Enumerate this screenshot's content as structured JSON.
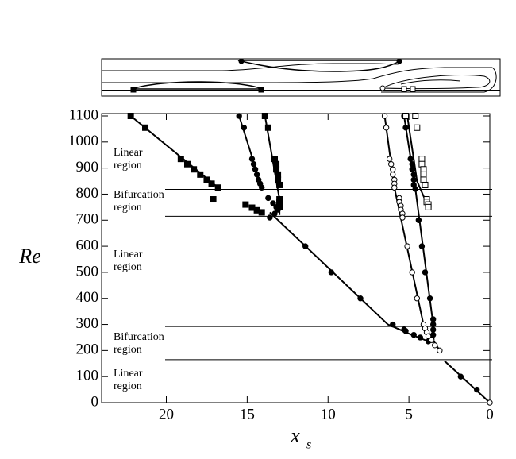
{
  "chart_data": {
    "type": "scatter",
    "xlabel": {
      "text": "x",
      "subscript": "s"
    },
    "ylabel": "Re",
    "xlim": [
      24,
      0
    ],
    "ylim": [
      0,
      1100
    ],
    "xticks": [
      20,
      15,
      10,
      5,
      0
    ],
    "yticks": [
      0,
      100,
      200,
      300,
      400,
      500,
      600,
      700,
      800,
      900,
      1000,
      1100
    ],
    "hlines": [
      818,
      715,
      292,
      165
    ],
    "annotations": [
      [
        "Linear",
        "region"
      ],
      [
        "Bifurcation",
        "region"
      ],
      [
        "Linear",
        "region"
      ],
      [
        "Bifurcation",
        "region"
      ],
      [
        "Linear",
        "region"
      ]
    ],
    "series": [
      {
        "marker": "filled-square",
        "color": "#000",
        "x": [
          22.2,
          21.3,
          19.1,
          18.7,
          18.3,
          17.9,
          17.5,
          17.2,
          16.8,
          17.1,
          15.1,
          14.7,
          14.4,
          14.1,
          13.9,
          13.7,
          13.3,
          13.2,
          13.2,
          13.1,
          13.1,
          13.0,
          13.0,
          13.0,
          13.0,
          13.0
        ],
        "y": [
          1100,
          1055,
          935,
          915,
          895,
          875,
          855,
          840,
          825,
          780,
          760,
          748,
          738,
          730,
          1100,
          1055,
          935,
          915,
          895,
          875,
          855,
          835,
          780,
          770,
          760,
          750
        ]
      },
      {
        "marker": "filled-circle",
        "color": "#000",
        "x": [
          15.5,
          15.2,
          14.7,
          14.6,
          14.5,
          14.4,
          14.3,
          14.2,
          14.1,
          13.7,
          13.4,
          13.2,
          13.1,
          13.3,
          13.6,
          11.4,
          9.8,
          8.0,
          6.0,
          5.3,
          5.2,
          4.7,
          4.3,
          3.8,
          5.3,
          5.2,
          4.9,
          4.8,
          4.8,
          4.7,
          4.7,
          4.7,
          4.6,
          4.4,
          4.2,
          4.0,
          3.7,
          3.5,
          3.5,
          3.5,
          3.5,
          3.6,
          1.8,
          0.8
        ],
        "y": [
          1100,
          1055,
          935,
          915,
          895,
          875,
          855,
          840,
          825,
          785,
          765,
          750,
          740,
          725,
          710,
          600,
          500,
          400,
          300,
          280,
          275,
          260,
          250,
          235,
          1100,
          1055,
          935,
          915,
          895,
          875,
          855,
          835,
          820,
          700,
          600,
          500,
          400,
          320,
          300,
          280,
          260,
          245,
          100,
          50
        ]
      },
      {
        "marker": "open-circle",
        "color": "#000",
        "x": [
          6.5,
          6.4,
          6.2,
          6.1,
          6.0,
          6.0,
          5.9,
          5.9,
          5.9,
          5.6,
          5.6,
          5.5,
          5.5,
          5.4,
          5.4,
          5.1,
          4.8,
          4.5,
          4.1,
          4.0,
          3.9,
          3.8,
          3.6,
          3.4,
          3.1,
          0
        ],
        "y": [
          1100,
          1055,
          935,
          915,
          895,
          875,
          855,
          840,
          825,
          785,
          770,
          755,
          740,
          725,
          710,
          600,
          500,
          400,
          300,
          285,
          270,
          255,
          240,
          220,
          200,
          0
        ]
      },
      {
        "marker": "open-square",
        "color": "#000",
        "x": [
          5.2,
          4.6,
          4.5,
          4.2,
          4.2,
          4.1,
          4.1,
          4.1,
          4.0,
          3.9,
          3.9,
          3.8,
          3.8
        ],
        "y": [
          1100,
          1100,
          1055,
          935,
          915,
          895,
          875,
          855,
          835,
          780,
          770,
          760,
          750
        ]
      }
    ],
    "lines": [
      {
        "x": [
          22.2,
          16.8
        ],
        "y": [
          1100,
          825
        ]
      },
      {
        "x": [
          15.5,
          14.1
        ],
        "y": [
          1100,
          825
        ]
      },
      {
        "x": [
          13.9,
          13.0,
          13.0
        ],
        "y": [
          1100,
          780,
          720
        ]
      },
      {
        "x": [
          13.6,
          6.3,
          5.0,
          3.8
        ],
        "y": [
          730,
          300,
          265,
          235
        ]
      },
      {
        "x": [
          6.5,
          5.9,
          4.1,
          3.1
        ],
        "y": [
          1100,
          825,
          300,
          200
        ]
      },
      {
        "x": [
          5.3,
          4.6,
          3.5,
          3.6
        ],
        "y": [
          1100,
          820,
          300,
          245
        ]
      },
      {
        "x": [
          5.1,
          4.5,
          3.8
        ],
        "y": [
          1100,
          850,
          750
        ]
      },
      {
        "x": [
          2.8,
          0
        ],
        "y": [
          160,
          0
        ]
      }
    ]
  }
}
